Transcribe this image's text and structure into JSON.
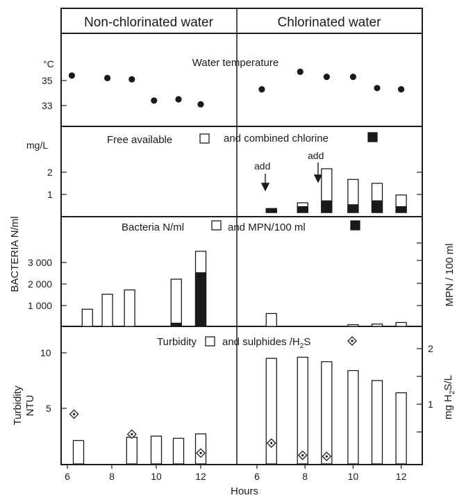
{
  "headers": {
    "left": "Non-chlorinated water",
    "right": "Chlorinated water"
  },
  "xlabel": "Hours",
  "x_ticks_left": [
    6,
    8,
    10,
    12
  ],
  "x_ticks_right": [
    6,
    8,
    10,
    12
  ],
  "chart_data": [
    {
      "type": "scatter",
      "title": "Water temperature",
      "unit": "°C",
      "y_ticks": [
        35,
        33
      ],
      "ylim": [
        32,
        37
      ],
      "series": [
        {
          "section": "non-chlorinated",
          "points": [
            [
              6.2,
              35.4
            ],
            [
              7.8,
              35.2
            ],
            [
              8.9,
              35.1
            ],
            [
              9.9,
              33.4
            ],
            [
              11.0,
              33.5
            ],
            [
              12.0,
              33.1
            ]
          ]
        },
        {
          "section": "chlorinated",
          "points": [
            [
              6.2,
              34.3
            ],
            [
              7.8,
              35.7
            ],
            [
              8.9,
              35.3
            ],
            [
              10.0,
              35.3
            ],
            [
              11.0,
              34.4
            ],
            [
              12.0,
              34.3
            ]
          ]
        }
      ]
    },
    {
      "type": "bar",
      "title": "Free available",
      "title_b": "and combined chlorine",
      "unit": "mg/L",
      "y_ticks": [
        2,
        1
      ],
      "ylim": [
        0,
        3
      ],
      "annotations": [
        {
          "text": "add",
          "x": 6.3,
          "section": "chlorinated"
        },
        {
          "text": "add",
          "x": 8.0,
          "section": "chlorinated"
        }
      ],
      "series": [
        {
          "name": "Free available",
          "fill": "open",
          "section": "chlorinated",
          "x": [
            6.6,
            7.9,
            8.9,
            10.0,
            11.0,
            12.0
          ],
          "values": [
            0.2,
            0.5,
            2.25,
            1.7,
            1.5,
            0.9
          ]
        },
        {
          "name": "combined chlorine",
          "fill": "solid",
          "section": "chlorinated",
          "x": [
            6.6,
            7.9,
            8.9,
            10.0,
            11.0,
            12.0
          ],
          "values": [
            0.2,
            0.3,
            0.6,
            0.4,
            0.6,
            0.3
          ]
        }
      ]
    },
    {
      "type": "bar",
      "title": "Bacteria N/ml",
      "title_b": "and MPN/100 ml",
      "ylabel": "BACTERIA N/ml",
      "ylabel_right": "MPN / 100 ml",
      "y_ticks": [
        "3 000",
        "2 000",
        "1 000"
      ],
      "ylim": [
        0,
        3800
      ],
      "series": [
        {
          "name": "Bacteria N/ml",
          "fill": "open",
          "section": "non-chlorinated",
          "x": [
            6.9,
            7.8,
            8.8,
            10.9,
            12.0
          ],
          "values": [
            800,
            1500,
            1700,
            2200,
            3500
          ]
        },
        {
          "name": "MPN/100 ml",
          "fill": "solid",
          "section": "non-chlorinated",
          "x": [
            10.9,
            12.0
          ],
          "values": [
            150,
            2500
          ]
        },
        {
          "name": "Bacteria N/ml",
          "fill": "open",
          "section": "chlorinated",
          "x": [
            6.6,
            10.0,
            11.0,
            12.0
          ],
          "values": [
            600,
            80,
            110,
            180
          ]
        }
      ]
    },
    {
      "type": "bar",
      "title": "Turbidity",
      "title_b": "and sulphides /H",
      "title_sub": "2",
      "title_c": "S",
      "ylabel": "Turbidity",
      "ylabel2": "NTU",
      "ylabel_right": "mg H",
      "ylabel_right_sub": "2",
      "ylabel_right_c": "S/L",
      "y_ticks": [
        10,
        5
      ],
      "y_ticks_right": [
        2,
        1
      ],
      "ylim": [
        0,
        11
      ],
      "ylim_right": [
        0,
        2.2
      ],
      "series": [
        {
          "name": "Turbidity",
          "fill": "open",
          "section": "non-chlorinated",
          "x": [
            6.5,
            8.9,
            10.0,
            11.0,
            12.0
          ],
          "values": [
            2.1,
            2.4,
            2.5,
            2.3,
            2.7
          ]
        },
        {
          "name": "Turbidity",
          "fill": "open",
          "section": "chlorinated",
          "x": [
            6.6,
            7.9,
            8.9,
            10.0,
            11.0,
            12.0
          ],
          "values": [
            9.5,
            9.6,
            9.2,
            8.4,
            7.5,
            6.4
          ]
        },
        {
          "name": "sulphides /H2S",
          "marker": "diamond",
          "section": "non-chlorinated",
          "x": [
            6.3,
            8.9,
            12.0
          ],
          "values": [
            0.82,
            0.46,
            0.12
          ]
        },
        {
          "name": "sulphides /H2S",
          "marker": "diamond",
          "section": "chlorinated",
          "x": [
            6.6,
            7.9,
            8.9
          ],
          "values": [
            0.3,
            0.08,
            0.06
          ]
        }
      ]
    }
  ]
}
